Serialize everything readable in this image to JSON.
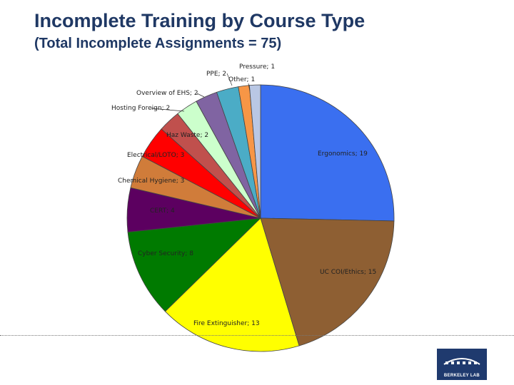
{
  "header": {
    "title": "Incomplete Training by Course Type",
    "subtitle": "(Total Incomplete Assignments = 75)"
  },
  "logo": {
    "text": "BERKELEY LAB"
  },
  "chart_data": {
    "type": "pie",
    "title": "",
    "total": 75,
    "slices": [
      {
        "label": "Ergonomics",
        "value": 19,
        "color": "#3a6ff0"
      },
      {
        "label": "UC COI/Ethics",
        "value": 15,
        "color": "#8e5f33"
      },
      {
        "label": "Fire Extinguisher",
        "value": 13,
        "color": "#ffff00"
      },
      {
        "label": "Cyber Security",
        "value": 8,
        "color": "#007a00"
      },
      {
        "label": "CERT",
        "value": 4,
        "color": "#5c0060"
      },
      {
        "label": "Chemical Hygiene",
        "value": 3,
        "color": "#d07c3a"
      },
      {
        "label": "Electrical/LOTO",
        "value": 3,
        "color": "#ff0000"
      },
      {
        "label": "Haz Waste",
        "value": 2,
        "color": "#c0504d"
      },
      {
        "label": "Hosting Foreign",
        "value": 2,
        "color": "#ccffcc"
      },
      {
        "label": "Overview of EHS",
        "value": 2,
        "color": "#8064a2"
      },
      {
        "label": "PPE",
        "value": 2,
        "color": "#4bacc6"
      },
      {
        "label": "Other",
        "value": 1,
        "color": "#f79646"
      },
      {
        "label": "Pressure",
        "value": 1,
        "color": "#b9c7e4"
      }
    ]
  }
}
